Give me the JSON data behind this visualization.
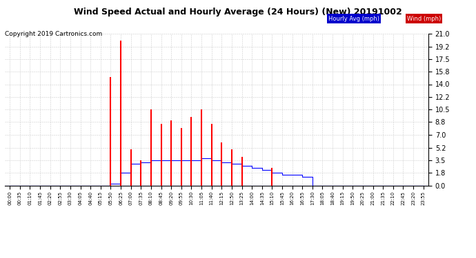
{
  "title": "Wind Speed Actual and Hourly Average (24 Hours) (New) 20191002",
  "copyright": "Copyright 2019 Cartronics.com",
  "yticks": [
    0.0,
    1.8,
    3.5,
    5.2,
    7.0,
    8.8,
    10.5,
    12.2,
    14.0,
    15.8,
    17.5,
    19.2,
    21.0
  ],
  "ymax": 21.0,
  "ymin": 0.0,
  "grid_color": "#cccccc",
  "bg_color": "#ffffff",
  "plot_bg": "#ffffff",
  "title_fontsize": 9,
  "copyright_fontsize": 6.5,
  "time_labels": [
    "00:00",
    "00:35",
    "01:10",
    "01:45",
    "02:20",
    "02:55",
    "03:30",
    "04:05",
    "04:40",
    "05:15",
    "05:50",
    "06:25",
    "07:00",
    "07:35",
    "08:10",
    "08:45",
    "09:20",
    "09:55",
    "10:30",
    "11:05",
    "11:40",
    "12:15",
    "12:50",
    "13:25",
    "14:00",
    "14:35",
    "15:10",
    "15:45",
    "16:20",
    "16:55",
    "17:30",
    "18:05",
    "18:40",
    "19:15",
    "19:50",
    "20:25",
    "21:00",
    "21:35",
    "22:10",
    "22:45",
    "23:20",
    "23:55"
  ],
  "wind": [
    0,
    0,
    0,
    0,
    0,
    0,
    0,
    0,
    0,
    0,
    15.0,
    20.0,
    5.0,
    3.5,
    10.5,
    8.5,
    9.0,
    8.0,
    9.5,
    10.5,
    8.5,
    6.0,
    5.0,
    4.0,
    0,
    0,
    2.5,
    0,
    0,
    0,
    0,
    0,
    0,
    0,
    0,
    0,
    0,
    0,
    0,
    0,
    0,
    0
  ],
  "hourly_avg": [
    0,
    0,
    0,
    0,
    0,
    0,
    0,
    0,
    0,
    0,
    0.3,
    1.8,
    3.0,
    3.2,
    3.5,
    3.5,
    3.5,
    3.5,
    3.5,
    3.8,
    3.5,
    3.2,
    3.0,
    2.8,
    2.5,
    2.2,
    1.8,
    1.5,
    1.5,
    1.2,
    0,
    0,
    0,
    0,
    0,
    0,
    0,
    0,
    0,
    0,
    0,
    0
  ]
}
